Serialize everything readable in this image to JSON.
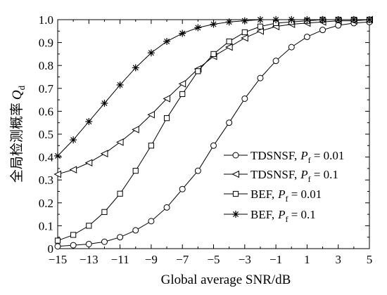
{
  "chart_data": {
    "type": "line",
    "xlabel": "Global average SNR/dB",
    "ylabel": "全局检测概率",
    "ylabel_symbol": "Q",
    "ylabel_subscript": "d",
    "xlim": [
      -15,
      5
    ],
    "ylim": [
      0,
      1.0
    ],
    "xticks": [
      -15,
      -13,
      -11,
      -9,
      -7,
      -5,
      -3,
      -1,
      1,
      3,
      5
    ],
    "xtick_labels": [
      "−15",
      "−13",
      "−11",
      "−9",
      "−7",
      "−5",
      "−3",
      "−1",
      "1",
      "3",
      "5"
    ],
    "yticks": [
      0,
      0.1,
      0.2,
      0.3,
      0.4,
      0.5,
      0.6,
      0.7,
      0.8,
      0.9,
      1.0
    ],
    "ytick_labels": [
      "0",
      "0.1",
      "0.2",
      "0.3",
      "0.4",
      "0.5",
      "0.6",
      "0.7",
      "0.8",
      "0.9",
      "1.0"
    ],
    "x": [
      -15,
      -14,
      -13,
      -12,
      -11,
      -10,
      -9,
      -8,
      -7,
      -6,
      -5,
      -4,
      -3,
      -2,
      -1,
      0,
      1,
      2,
      3,
      4,
      5
    ],
    "grid": false,
    "legend_position": "bottom-right",
    "series": [
      {
        "name_main": "TDSNSF,",
        "name_var": "P",
        "name_sub": "f",
        "name_val": " = 0.01",
        "marker": "circle",
        "values": [
          0.01,
          0.015,
          0.02,
          0.03,
          0.05,
          0.08,
          0.12,
          0.18,
          0.26,
          0.34,
          0.45,
          0.55,
          0.655,
          0.745,
          0.82,
          0.88,
          0.925,
          0.955,
          0.975,
          0.985,
          0.99
        ]
      },
      {
        "name_main": "TDSNSF,",
        "name_var": "P",
        "name_sub": "f",
        "name_val": " = 0.1",
        "marker": "triangle-left",
        "values": [
          0.325,
          0.345,
          0.375,
          0.415,
          0.465,
          0.52,
          0.585,
          0.655,
          0.72,
          0.785,
          0.84,
          0.88,
          0.92,
          0.95,
          0.97,
          0.98,
          0.985,
          0.99,
          0.995,
          0.995,
          1.0
        ]
      },
      {
        "name_main": "BEF,",
        "name_var": "P",
        "name_sub": "f",
        "name_val": " = 0.01",
        "marker": "square",
        "values": [
          0.035,
          0.06,
          0.1,
          0.16,
          0.24,
          0.34,
          0.45,
          0.57,
          0.675,
          0.775,
          0.85,
          0.905,
          0.945,
          0.97,
          0.985,
          0.99,
          0.995,
          1.0,
          1.0,
          1.0,
          1.0
        ]
      },
      {
        "name_main": "BEF,",
        "name_var": "P",
        "name_sub": "f",
        "name_val": " = 0.1",
        "marker": "star",
        "values": [
          0.405,
          0.475,
          0.555,
          0.635,
          0.715,
          0.79,
          0.855,
          0.905,
          0.94,
          0.965,
          0.98,
          0.99,
          0.995,
          1.0,
          1.0,
          1.0,
          1.0,
          1.0,
          1.0,
          1.0,
          1.0
        ]
      }
    ]
  }
}
